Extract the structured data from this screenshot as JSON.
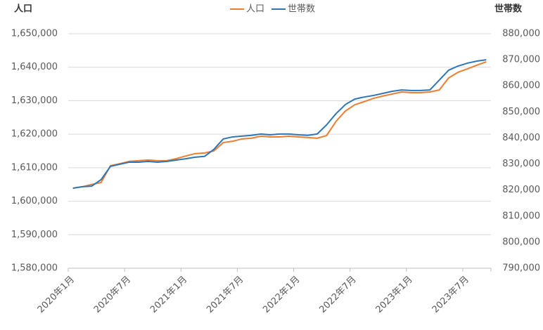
{
  "chart_data": {
    "type": "line",
    "y_label": "人口",
    "y2_label": "世帯数",
    "legend": "top",
    "grid": true,
    "categories": [
      "2020年1月",
      null,
      null,
      null,
      null,
      null,
      "2020年7月",
      null,
      null,
      null,
      null,
      null,
      "2021年1月",
      null,
      null,
      null,
      null,
      null,
      "2021年7月",
      null,
      null,
      null,
      null,
      null,
      "2022年1月",
      null,
      null,
      null,
      null,
      null,
      "2022年7月",
      null,
      null,
      null,
      null,
      null,
      "2023年1月",
      null,
      null,
      null,
      null,
      null,
      "2023年7月",
      null,
      null
    ],
    "series": [
      {
        "name": "人口",
        "color": "#ED7D31",
        "axis": "y",
        "values": [
          1603900,
          1604300,
          1605000,
          1605600,
          1610600,
          1611200,
          1611900,
          1612100,
          1612300,
          1612100,
          1612100,
          1612700,
          1613500,
          1614200,
          1614400,
          1615000,
          1617500,
          1617900,
          1618600,
          1618800,
          1619400,
          1619200,
          1619200,
          1619400,
          1619200,
          1619000,
          1618800,
          1619600,
          1623800,
          1626900,
          1628800,
          1629700,
          1630700,
          1631400,
          1632000,
          1632600,
          1632400,
          1632400,
          1632600,
          1633200,
          1636800,
          1638500,
          1639500,
          1640600,
          1641600
        ]
      },
      {
        "name": "世帯数",
        "color": "#2E75B6",
        "axis": "y2",
        "values": [
          820700,
          821300,
          821500,
          824000,
          829100,
          829900,
          830700,
          830700,
          831000,
          830700,
          831000,
          831500,
          832000,
          832600,
          832900,
          835600,
          839600,
          840400,
          840700,
          841000,
          841500,
          841200,
          841500,
          841500,
          841200,
          841000,
          841500,
          845000,
          849300,
          852800,
          854900,
          855700,
          856300,
          857100,
          857900,
          858400,
          858200,
          858200,
          858400,
          862200,
          866000,
          867600,
          868700,
          869500,
          870000
        ]
      }
    ],
    "ylim": [
      1580000,
      1650000
    ],
    "yticks": [
      {
        "value": 1580000,
        "label": "1,580,000"
      },
      {
        "value": 1590000,
        "label": "1,590,000"
      },
      {
        "value": 1600000,
        "label": "1,600,000"
      },
      {
        "value": 1610000,
        "label": "1,610,000"
      },
      {
        "value": 1620000,
        "label": "1,620,000"
      },
      {
        "value": 1630000,
        "label": "1,630,000"
      },
      {
        "value": 1640000,
        "label": "1,640,000"
      },
      {
        "value": 1650000,
        "label": "1,650,000"
      }
    ],
    "y2lim": [
      790000,
      880000
    ],
    "y2ticks": [
      {
        "value": 790000,
        "label": "790,000"
      },
      {
        "value": 800000,
        "label": "800,000"
      },
      {
        "value": 810000,
        "label": "810,000"
      },
      {
        "value": 820000,
        "label": "820,000"
      },
      {
        "value": 830000,
        "label": "830,000"
      },
      {
        "value": 840000,
        "label": "840,000"
      },
      {
        "value": 850000,
        "label": "850,000"
      },
      {
        "value": 860000,
        "label": "860,000"
      },
      {
        "value": 870000,
        "label": "870,000"
      },
      {
        "value": 880000,
        "label": "880,000"
      }
    ]
  }
}
